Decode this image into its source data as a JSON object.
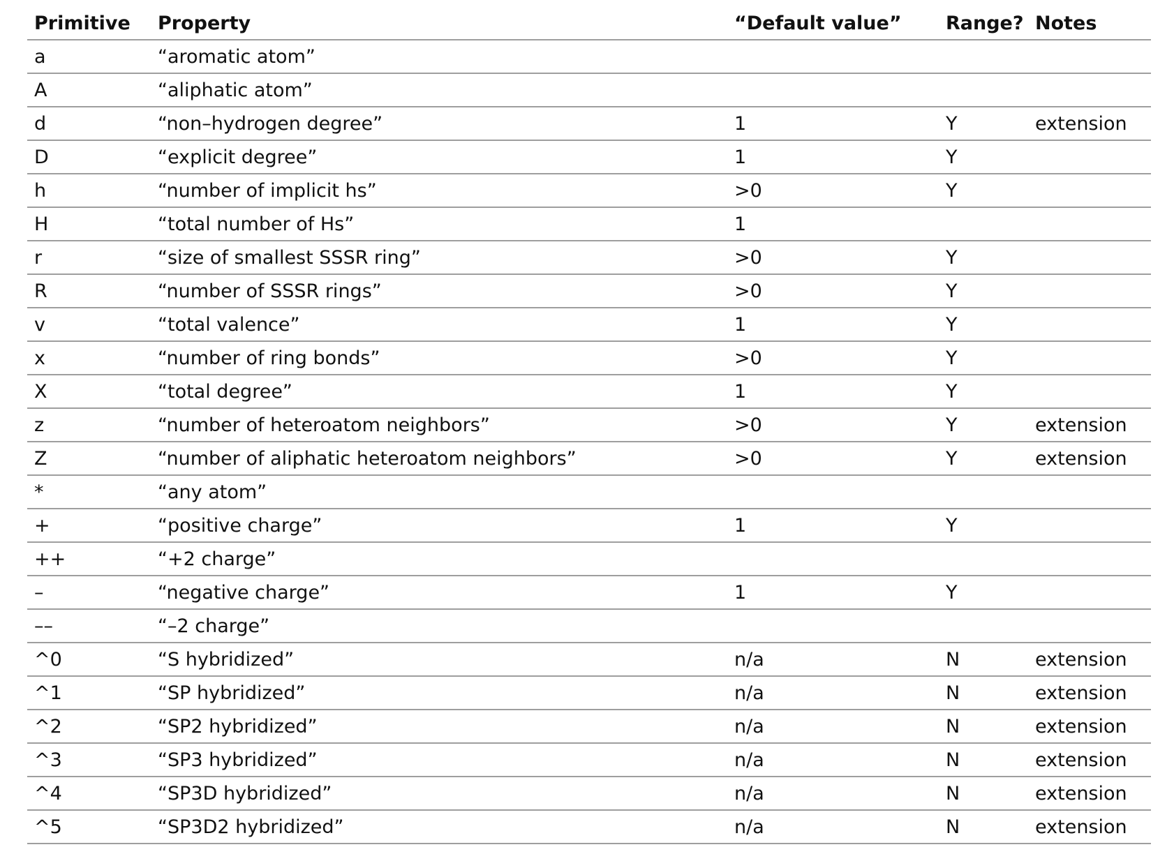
{
  "table": {
    "headers": [
      "Primitive",
      "Property",
      "“Default value”",
      "Range?",
      "Notes"
    ],
    "rows": [
      [
        "a",
        "“aromatic atom”",
        "",
        "",
        ""
      ],
      [
        "A",
        "“aliphatic atom”",
        "",
        "",
        ""
      ],
      [
        "d",
        "“non–hydrogen degree”",
        "1",
        "Y",
        "extension"
      ],
      [
        "D",
        "“explicit degree”",
        "1",
        "Y",
        ""
      ],
      [
        "h",
        "“number of implicit hs”",
        ">0",
        "Y",
        ""
      ],
      [
        "H",
        "“total number of Hs”",
        "1",
        "",
        ""
      ],
      [
        "r",
        "“size of smallest SSSR ring”",
        ">0",
        "Y",
        ""
      ],
      [
        "R",
        "“number of SSSR rings”",
        ">0",
        "Y",
        ""
      ],
      [
        "v",
        "“total valence”",
        "1",
        "Y",
        ""
      ],
      [
        "x",
        "“number of ring bonds”",
        ">0",
        "Y",
        ""
      ],
      [
        "X",
        "“total degree”",
        "1",
        "Y",
        ""
      ],
      [
        "z",
        "“number of heteroatom neighbors”",
        ">0",
        "Y",
        "extension"
      ],
      [
        "Z",
        "“number of aliphatic heteroatom neighbors”",
        ">0",
        "Y",
        "extension"
      ],
      [
        "*",
        "“any atom”",
        "",
        "",
        ""
      ],
      [
        "+",
        "“positive charge”",
        "1",
        "Y",
        ""
      ],
      [
        "++",
        "“+2 charge”",
        "",
        "",
        ""
      ],
      [
        "–",
        "“negative charge”",
        "1",
        "Y",
        ""
      ],
      [
        "––",
        "“–2 charge”",
        "",
        "",
        ""
      ],
      [
        "^0",
        "“S hybridized”",
        "n/a",
        "N",
        "extension"
      ],
      [
        "^1",
        "“SP hybridized”",
        "n/a",
        "N",
        "extension"
      ],
      [
        "^2",
        "“SP2 hybridized”",
        "n/a",
        "N",
        "extension"
      ],
      [
        "^3",
        "“SP3 hybridized”",
        "n/a",
        "N",
        "extension"
      ],
      [
        "^4",
        "“SP3D hybridized”",
        "n/a",
        "N",
        "extension"
      ],
      [
        "^5",
        "“SP3D2 hybridized”",
        "n/a",
        "N",
        "extension"
      ]
    ]
  }
}
